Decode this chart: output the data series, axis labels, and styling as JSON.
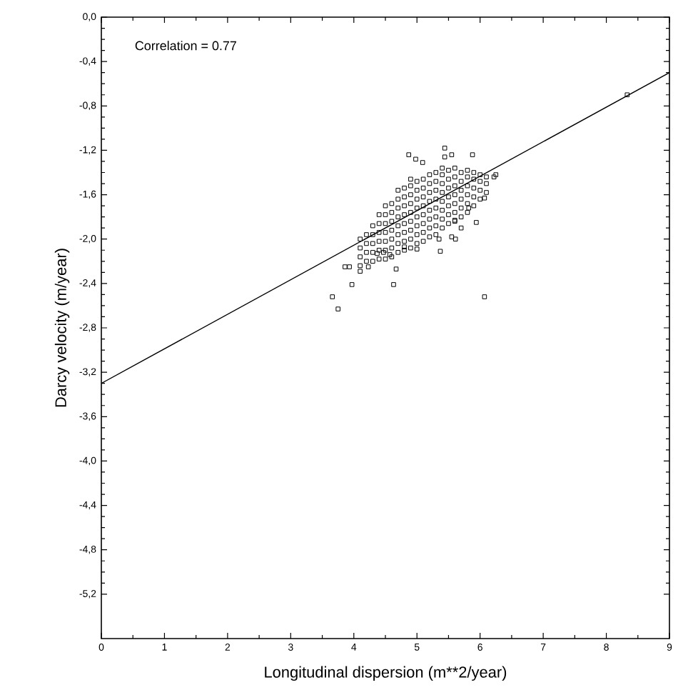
{
  "chart_data": {
    "type": "scatter",
    "xlabel": "Longitudinal dispersion (m**2/year)",
    "ylabel": "Darcy velocity (m/year)",
    "annotations": [
      "Correlation = 0.77"
    ],
    "xlim": [
      0,
      9
    ],
    "ylim": [
      -5.6,
      0
    ],
    "xticks": [
      0,
      1,
      2,
      3,
      4,
      5,
      6,
      7,
      8,
      9
    ],
    "yticks": [
      {
        "value": 0,
        "label": "0,0"
      },
      {
        "value": -0.4,
        "label": "-0,4"
      },
      {
        "value": -0.8,
        "label": "-0,8"
      },
      {
        "value": -1.2,
        "label": "-1,2"
      },
      {
        "value": -1.6,
        "label": "-1,6"
      },
      {
        "value": -2.0,
        "label": "-2,0"
      },
      {
        "value": -2.4,
        "label": "-2,4"
      },
      {
        "value": -2.8,
        "label": "-2,8"
      },
      {
        "value": -3.2,
        "label": "-3,2"
      },
      {
        "value": -3.6,
        "label": "-3,6"
      },
      {
        "value": -4.0,
        "label": "-4,0"
      },
      {
        "value": -4.4,
        "label": "-4,4"
      },
      {
        "value": -4.8,
        "label": "-4,8"
      },
      {
        "value": -5.2,
        "label": "-5,2"
      }
    ],
    "series": [
      {
        "color": "#000000",
        "marker": "square",
        "x": [
          8.33,
          3.66,
          3.75,
          6.07,
          3.97,
          4.63,
          4.67,
          3.86,
          3.93,
          4.1,
          4.23,
          4.87,
          4.98,
          5.09,
          5.44,
          5.44,
          5.55,
          5.88,
          6.25,
          6.22,
          5.94,
          5.37,
          5.35,
          5.0,
          4.8,
          4.47,
          4.57,
          4.37,
          5.7,
          5.61,
          5.55,
          5.6,
          6.07,
          5.82,
          4.1,
          4.1,
          4.1,
          4.1,
          4.2,
          4.2,
          4.2,
          4.2,
          4.3,
          4.3,
          4.3,
          4.3,
          4.3,
          4.4,
          4.4,
          4.4,
          4.4,
          4.4,
          4.4,
          4.5,
          4.5,
          4.5,
          4.5,
          4.5,
          4.5,
          4.5,
          4.6,
          4.6,
          4.6,
          4.6,
          4.6,
          4.6,
          4.6,
          4.7,
          4.7,
          4.7,
          4.7,
          4.7,
          4.7,
          4.7,
          4.7,
          4.8,
          4.8,
          4.8,
          4.8,
          4.8,
          4.8,
          4.8,
          4.8,
          4.9,
          4.9,
          4.9,
          4.9,
          4.9,
          4.9,
          4.9,
          4.9,
          4.9,
          5.0,
          5.0,
          5.0,
          5.0,
          5.0,
          5.0,
          5.0,
          5.0,
          5.1,
          5.1,
          5.1,
          5.1,
          5.1,
          5.1,
          5.1,
          5.1,
          5.2,
          5.2,
          5.2,
          5.2,
          5.2,
          5.2,
          5.2,
          5.2,
          5.3,
          5.3,
          5.3,
          5.3,
          5.3,
          5.3,
          5.3,
          5.3,
          5.4,
          5.4,
          5.4,
          5.4,
          5.4,
          5.4,
          5.4,
          5.4,
          5.5,
          5.5,
          5.5,
          5.5,
          5.5,
          5.5,
          5.5,
          5.6,
          5.6,
          5.6,
          5.6,
          5.6,
          5.6,
          5.6,
          5.7,
          5.7,
          5.7,
          5.7,
          5.7,
          5.7,
          5.8,
          5.8,
          5.8,
          5.8,
          5.8,
          5.8,
          5.9,
          5.9,
          5.9,
          5.9,
          5.9,
          6.0,
          6.0,
          6.0,
          6.0,
          6.1,
          6.1,
          6.1
        ],
        "values": [
          -0.7,
          -2.52,
          -2.63,
          -2.52,
          -2.41,
          -2.41,
          -2.27,
          -2.25,
          -2.25,
          -2.29,
          -2.25,
          -1.24,
          -1.28,
          -1.31,
          -1.18,
          -1.26,
          -1.24,
          -1.24,
          -1.42,
          -1.44,
          -1.85,
          -2.11,
          -2.0,
          -2.09,
          -2.07,
          -2.12,
          -2.14,
          -2.13,
          -1.9,
          -2.0,
          -1.98,
          -1.83,
          -1.63,
          -1.72,
          -2.24,
          -2.16,
          -2.08,
          -2.0,
          -2.2,
          -2.12,
          -2.04,
          -1.96,
          -2.2,
          -2.12,
          -2.04,
          -1.96,
          -1.88,
          -2.18,
          -2.1,
          -2.02,
          -1.94,
          -1.86,
          -1.78,
          -2.18,
          -2.1,
          -2.02,
          -1.94,
          -1.86,
          -1.78,
          -1.7,
          -2.16,
          -2.08,
          -2.0,
          -1.92,
          -1.84,
          -1.76,
          -1.68,
          -2.12,
          -2.04,
          -1.96,
          -1.88,
          -1.8,
          -1.72,
          -1.64,
          -1.56,
          -2.1,
          -2.02,
          -1.94,
          -1.86,
          -1.78,
          -1.7,
          -1.62,
          -1.54,
          -2.08,
          -2.0,
          -1.92,
          -1.84,
          -1.76,
          -1.68,
          -1.6,
          -1.52,
          -1.46,
          -2.04,
          -1.96,
          -1.88,
          -1.8,
          -1.72,
          -1.64,
          -1.56,
          -1.48,
          -2.02,
          -1.94,
          -1.86,
          -1.78,
          -1.7,
          -1.62,
          -1.54,
          -1.46,
          -1.98,
          -1.9,
          -1.82,
          -1.74,
          -1.66,
          -1.58,
          -1.5,
          -1.42,
          -1.96,
          -1.88,
          -1.8,
          -1.72,
          -1.64,
          -1.56,
          -1.48,
          -1.4,
          -1.9,
          -1.82,
          -1.74,
          -1.66,
          -1.58,
          -1.5,
          -1.42,
          -1.36,
          -1.86,
          -1.78,
          -1.7,
          -1.62,
          -1.54,
          -1.46,
          -1.38,
          -1.84,
          -1.76,
          -1.68,
          -1.6,
          -1.52,
          -1.44,
          -1.36,
          -1.8,
          -1.72,
          -1.64,
          -1.56,
          -1.48,
          -1.4,
          -1.76,
          -1.68,
          -1.6,
          -1.52,
          -1.44,
          -1.38,
          -1.7,
          -1.62,
          -1.54,
          -1.46,
          -1.4,
          -1.64,
          -1.56,
          -1.48,
          -1.42,
          -1.58,
          -1.5,
          -1.44
        ]
      },
      {
        "type": "line",
        "color": "#000000",
        "line_style": "solid",
        "x": [
          0,
          9
        ],
        "values": [
          -3.3,
          -0.5
        ]
      }
    ]
  }
}
